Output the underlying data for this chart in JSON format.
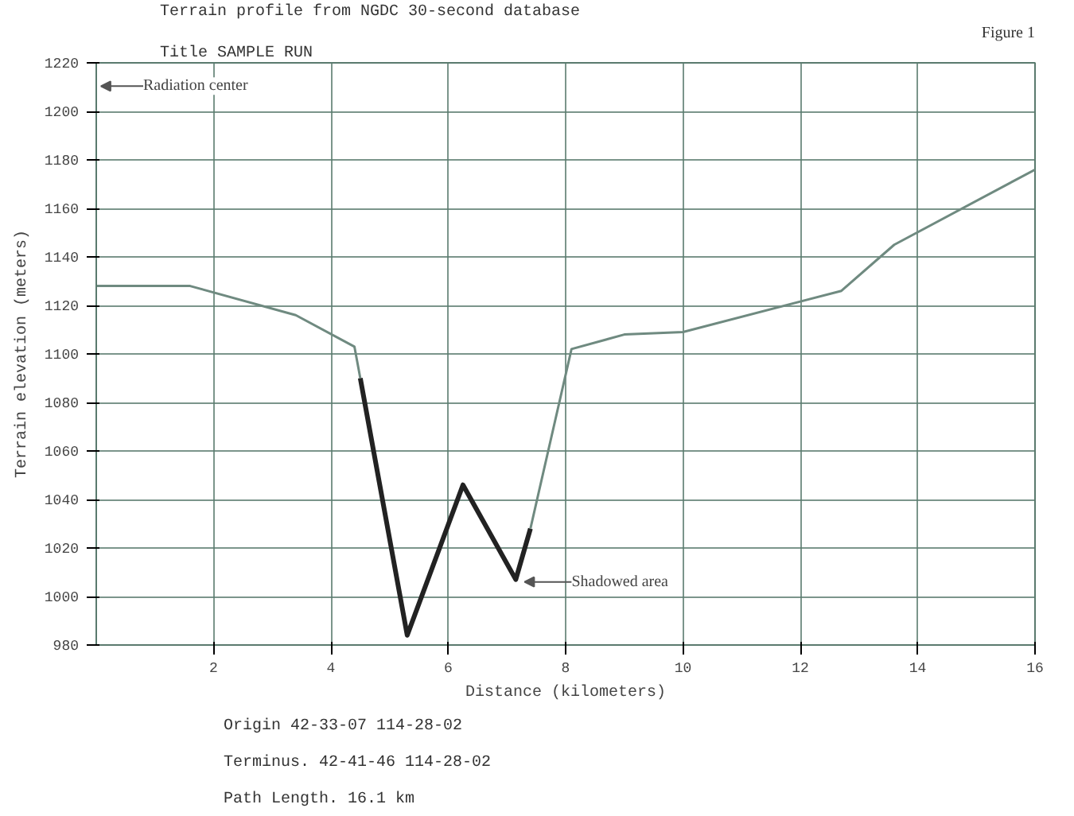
{
  "chart_data": {
    "type": "line",
    "title": "Terrain profile from NGDC 30-second database",
    "subtitle": "Title  SAMPLE RUN",
    "xlabel": "Distance (kilometers)",
    "ylabel": "Terrain elevation (meters)",
    "xlim": [
      0,
      16
    ],
    "xticks": [
      2,
      4,
      6,
      8,
      10,
      12,
      14,
      16
    ],
    "ylim": [
      980,
      1220
    ],
    "yticks": [
      980,
      1000,
      1020,
      1040,
      1060,
      1080,
      1100,
      1120,
      1140,
      1160,
      1180,
      1200,
      1220
    ],
    "grid": true,
    "line_style": "solid",
    "series": [
      {
        "color": "#6f8a80",
        "x": [
          0,
          1.6,
          3.4,
          4.4,
          4.5
        ],
        "values": [
          1128,
          1128,
          1116,
          1103,
          1090
        ]
      },
      {
        "color": "#222222",
        "x": [
          4.5,
          5.3,
          6.25,
          7.15,
          7.4
        ],
        "values": [
          1090,
          984,
          1046,
          1007,
          1028
        ]
      },
      {
        "color": "#6f8a80",
        "x": [
          7.4,
          8.1,
          9.0,
          10.0,
          12.7,
          13.6,
          16.0
        ],
        "values": [
          1028,
          1102,
          1108,
          1109,
          1126,
          1145,
          1176
        ]
      }
    ],
    "annotations": [
      "Figure 1",
      "Origin    42-33-07 114-28-02",
      "Terminus. 42-41-46 114-28-02",
      "Path Length.  16.1 km",
      "Radiation center",
      {
        "text": "Shadowed area",
        "x": 7.2,
        "y": 1006
      }
    ]
  }
}
